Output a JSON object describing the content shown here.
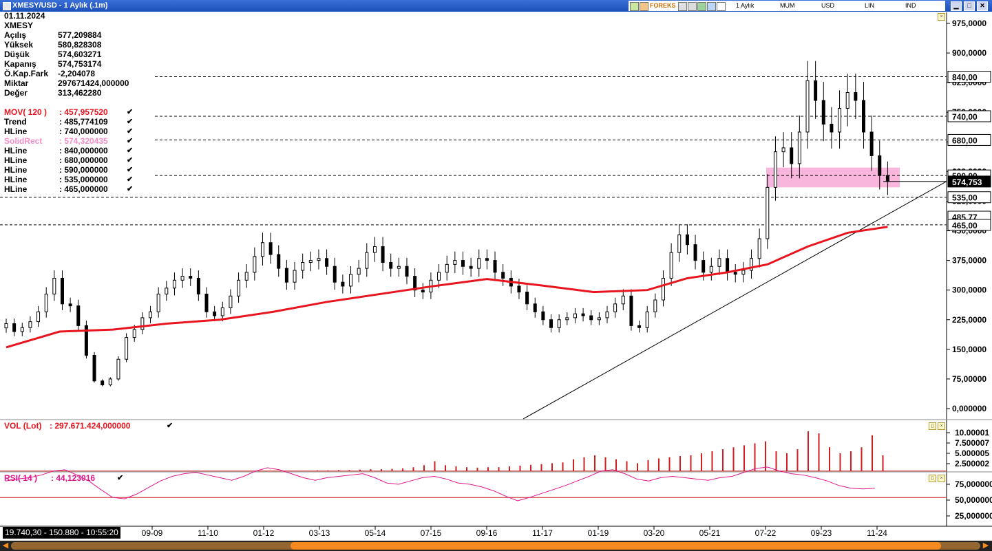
{
  "window": {
    "title": "XMESY/USD - 1 Aylık (.1m)"
  },
  "toolbar": {
    "items": [
      "FOREKS"
    ],
    "period": "1 Aylık",
    "chart_type": "MUM",
    "currency": "USD",
    "scale": "LIN",
    "indicator": "IND"
  },
  "info": [
    {
      "label": "01.11.2024",
      "value": ""
    },
    {
      "label": "XMESY",
      "value": ""
    },
    {
      "label": "Açılış",
      "value": "577,209884"
    },
    {
      "label": "Yüksek",
      "value": "580,828308"
    },
    {
      "label": "Düşük",
      "value": "574,603271"
    },
    {
      "label": "Kapanış",
      "value": "574,753174"
    },
    {
      "label": "Ö.Kap.Fark",
      "value": "-2,204078"
    },
    {
      "label": "Miktar",
      "value": "297671424,000000"
    },
    {
      "label": "Değer",
      "value": "313,462280"
    }
  ],
  "indicators": [
    {
      "label": "MOV( 120 )",
      "value": ": 457,957520",
      "color": "#e8141e"
    },
    {
      "label": "Trend",
      "value": ": 485,774109",
      "color": "#000000"
    },
    {
      "label": "HLine",
      "value": ": 740,000000",
      "color": "#000000"
    },
    {
      "label": "SolidRect",
      "value": ": 574,320435",
      "color": "#f48cc8"
    },
    {
      "label": "HLine",
      "value": ": 840,000000",
      "color": "#000000"
    },
    {
      "label": "HLine",
      "value": ": 680,000000",
      "color": "#000000"
    },
    {
      "label": "HLine",
      "value": ": 590,000000",
      "color": "#000000"
    },
    {
      "label": "HLine",
      "value": ": 535,000000",
      "color": "#000000"
    },
    {
      "label": "HLine",
      "value": ": 465,000000",
      "color": "#000000"
    }
  ],
  "vol_panel": {
    "label": "VOL (Lot)",
    "value": ": 297.671.424,000000",
    "ticks": [
      "10.00001",
      "7.500007",
      "5.000005",
      "2.500002"
    ]
  },
  "rsi_panel": {
    "label": "RSI( 14 )",
    "value": ": 44,123016",
    "ticks": [
      "75,000000",
      "50,000000",
      "25,000000"
    ],
    "upper": 70,
    "lower": 30
  },
  "price_axis": {
    "ticks": [
      "975,0000",
      "900,0000",
      "825,0000",
      "750,0000",
      "675,0000",
      "600,0000",
      "525,0000",
      "450,0000",
      "375,0000",
      "300,0000",
      "225,0000",
      "150,0000",
      "75,00000",
      "0,000000"
    ]
  },
  "hline_labels": [
    "840,00",
    "740,00",
    "680,00",
    "590,00",
    "574,753",
    "535,00",
    "485,77",
    "465,00"
  ],
  "x_labels": [
    "09-09",
    "11-10",
    "01-12",
    "03-13",
    "05-14",
    "07-15",
    "09-16",
    "11-17",
    "01-19",
    "03-20",
    "05-21",
    "07-22",
    "09-23",
    "11-24"
  ],
  "status": "19.740,30 - 150.880 - 10:55:20",
  "colors": {
    "ma": "#e8141e",
    "rsi": "#e0148c",
    "vol": "#d21e1e",
    "rect": "#f9b6dc",
    "rsi_band": "#d21e1e"
  },
  "chart_data": {
    "type": "candlestick",
    "title": "XMESY/USD - 1 Aylık (.1m)",
    "ylim": [
      0,
      975
    ],
    "hlines": [
      840,
      740,
      680,
      590,
      535,
      465
    ],
    "trend_value": 485.77,
    "solid_rect": [
      560,
      610
    ],
    "close_points": [
      [
        0,
        215
      ],
      [
        3,
        195
      ],
      [
        6,
        205
      ],
      [
        9,
        220
      ],
      [
        12,
        245
      ],
      [
        15,
        290
      ],
      [
        18,
        330
      ],
      [
        21,
        265
      ],
      [
        24,
        260
      ],
      [
        27,
        210
      ],
      [
        30,
        135
      ],
      [
        33,
        70
      ],
      [
        36,
        60
      ],
      [
        39,
        75
      ],
      [
        42,
        125
      ],
      [
        45,
        180
      ],
      [
        48,
        200
      ],
      [
        51,
        230
      ],
      [
        54,
        245
      ],
      [
        57,
        290
      ],
      [
        60,
        305
      ],
      [
        63,
        325
      ],
      [
        66,
        335
      ],
      [
        69,
        330
      ],
      [
        72,
        290
      ],
      [
        75,
        245
      ],
      [
        78,
        235
      ],
      [
        81,
        255
      ],
      [
        84,
        285
      ],
      [
        87,
        325
      ],
      [
        90,
        345
      ],
      [
        93,
        385
      ],
      [
        96,
        420
      ],
      [
        99,
        390
      ],
      [
        102,
        355
      ],
      [
        105,
        320
      ],
      [
        108,
        350
      ],
      [
        111,
        370
      ],
      [
        114,
        375
      ],
      [
        117,
        380
      ],
      [
        120,
        360
      ],
      [
        123,
        320
      ],
      [
        126,
        310
      ],
      [
        129,
        340
      ],
      [
        132,
        355
      ],
      [
        135,
        395
      ],
      [
        138,
        410
      ],
      [
        141,
        370
      ],
      [
        144,
        355
      ],
      [
        147,
        360
      ],
      [
        150,
        335
      ],
      [
        153,
        300
      ],
      [
        156,
        295
      ],
      [
        159,
        325
      ],
      [
        162,
        345
      ],
      [
        165,
        365
      ],
      [
        168,
        375
      ],
      [
        171,
        360
      ],
      [
        174,
        355
      ],
      [
        177,
        380
      ],
      [
        180,
        375
      ],
      [
        183,
        345
      ],
      [
        186,
        330
      ],
      [
        189,
        310
      ],
      [
        192,
        295
      ],
      [
        195,
        265
      ],
      [
        198,
        245
      ],
      [
        201,
        225
      ],
      [
        204,
        205
      ],
      [
        207,
        225
      ],
      [
        210,
        230
      ],
      [
        213,
        240
      ],
      [
        216,
        235
      ],
      [
        219,
        225
      ],
      [
        222,
        230
      ],
      [
        225,
        245
      ],
      [
        228,
        265
      ],
      [
        231,
        285
      ],
      [
        234,
        210
      ],
      [
        237,
        205
      ],
      [
        240,
        245
      ],
      [
        243,
        275
      ],
      [
        246,
        330
      ],
      [
        249,
        395
      ],
      [
        252,
        440
      ],
      [
        255,
        415
      ],
      [
        258,
        375
      ],
      [
        261,
        345
      ],
      [
        264,
        360
      ],
      [
        267,
        380
      ],
      [
        270,
        345
      ],
      [
        273,
        340
      ],
      [
        276,
        350
      ],
      [
        279,
        380
      ],
      [
        282,
        430
      ],
      [
        285,
        560
      ],
      [
        288,
        650
      ],
      [
        291,
        660
      ],
      [
        294,
        620
      ],
      [
        297,
        700
      ],
      [
        300,
        830
      ],
      [
        303,
        780
      ],
      [
        306,
        720
      ],
      [
        309,
        700
      ],
      [
        312,
        760
      ],
      [
        315,
        800
      ],
      [
        318,
        780
      ],
      [
        321,
        700
      ],
      [
        324,
        640
      ],
      [
        327,
        590
      ],
      [
        330,
        575
      ]
    ],
    "ma_points": [
      [
        0,
        155
      ],
      [
        20,
        195
      ],
      [
        40,
        200
      ],
      [
        60,
        215
      ],
      [
        80,
        225
      ],
      [
        100,
        245
      ],
      [
        120,
        270
      ],
      [
        140,
        290
      ],
      [
        160,
        310
      ],
      [
        180,
        328
      ],
      [
        200,
        312
      ],
      [
        220,
        295
      ],
      [
        240,
        300
      ],
      [
        255,
        330
      ],
      [
        270,
        345
      ],
      [
        285,
        365
      ],
      [
        300,
        410
      ],
      [
        315,
        445
      ],
      [
        330,
        460
      ]
    ],
    "vol_values": [
      0.1,
      0.1,
      0.1,
      0.1,
      0.1,
      0.1,
      0.2,
      0.2,
      0.3,
      0.3,
      0.4,
      0.5,
      0.5,
      0.6,
      0.7,
      1.0,
      1.5,
      2.5,
      1.5,
      1.2,
      1.0,
      0.9,
      1.0,
      1.0,
      1.2,
      1.4,
      1.6,
      1.8,
      2.0,
      2.2,
      3.0,
      3.5,
      4.0,
      3.5,
      3.0,
      2.5,
      2.0,
      2.8,
      3.2,
      3.5,
      3.8,
      4.0,
      4.5,
      5.0,
      5.5,
      6.0,
      6.5,
      7.0,
      7.5,
      5.0,
      4.5,
      5.5,
      10.0,
      9.5,
      6.0,
      4.5,
      5.0,
      6.0,
      9.0,
      4.0
    ],
    "rsi_values": [
      55,
      58,
      60,
      64,
      70,
      72,
      64,
      55,
      42,
      30,
      28,
      35,
      45,
      55,
      62,
      66,
      68,
      64,
      60,
      56,
      62,
      70,
      75,
      72,
      66,
      60,
      56,
      60,
      62,
      64,
      66,
      60,
      52,
      50,
      55,
      60,
      62,
      58,
      52,
      50,
      46,
      40,
      32,
      25,
      30,
      36,
      42,
      48,
      55,
      62,
      70,
      72,
      66,
      58,
      55,
      60,
      62,
      60,
      58,
      56,
      60,
      62,
      68,
      74,
      76,
      70,
      66,
      64,
      60,
      55,
      48,
      44,
      43,
      44
    ]
  }
}
